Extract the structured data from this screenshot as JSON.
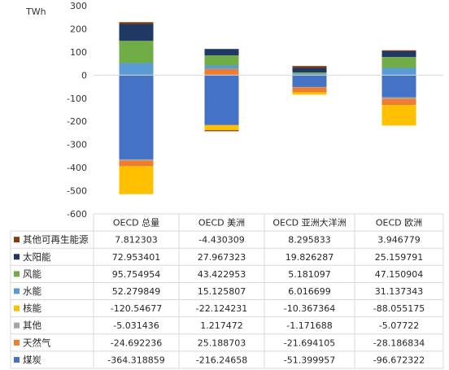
{
  "chart_data": {
    "type": "bar",
    "stacked": true,
    "title": "",
    "ylabel": "TWh",
    "ylim": [
      -600,
      300
    ],
    "yticks": [
      300,
      200,
      100,
      0,
      -100,
      -200,
      -300,
      -400,
      -500,
      -600
    ],
    "grid": false,
    "legend": "left-table",
    "categories": [
      "OECD 总量",
      "OECD 美洲",
      "OECD 亚洲大洋洲",
      "OECD 欧洲"
    ],
    "series": [
      {
        "name": "其他可再生能源",
        "color": "#843c0c",
        "values": [
          7.812303,
          -4.430309,
          8.295833,
          3.946779
        ],
        "display": [
          "7.812303",
          "-4.430309",
          "8.295833",
          "3.946779"
        ]
      },
      {
        "name": "太阳能",
        "color": "#203864",
        "values": [
          72.953401,
          27.967323,
          19.826287,
          25.159791
        ],
        "display": [
          "72.953401",
          "27.967323",
          "19.826287",
          "25.159791"
        ]
      },
      {
        "name": "风能",
        "color": "#70ad47",
        "values": [
          95.754954,
          43.422953,
          5.181097,
          47.150904
        ],
        "display": [
          "95.754954",
          "43.422953",
          "5.181097",
          "47.150904"
        ]
      },
      {
        "name": "水能",
        "color": "#5b9bd5",
        "values": [
          52.279849,
          15.125807,
          6.016699,
          31.137343
        ],
        "display": [
          "52.279849",
          "15.125807",
          "6.016699",
          "31.137343"
        ]
      },
      {
        "name": "核能",
        "color": "#ffc000",
        "values": [
          -120.54677,
          -22.124231,
          -10.367364,
          -88.055175
        ],
        "display": [
          "-120.54677",
          "-22.124231",
          "-10.367364",
          "-88.055175"
        ]
      },
      {
        "name": "其他",
        "color": "#a5a5a5",
        "values": [
          -5.031436,
          1.217472,
          -1.171688,
          -5.07722
        ],
        "display": [
          "-5.031436",
          "1.217472",
          "-1.171688",
          "-5.07722"
        ]
      },
      {
        "name": "天然气",
        "color": "#ed7d31",
        "values": [
          -24.692236,
          25.188703,
          -21.694105,
          -28.186834
        ],
        "display": [
          "-24.692236",
          "25.188703",
          "-21.694105",
          "-28.186834"
        ]
      },
      {
        "name": "煤炭",
        "color": "#4472c4",
        "values": [
          -364.318859,
          -216.24658,
          -51.399957,
          -96.672322
        ],
        "display": [
          "-364.318859",
          "-216.24658",
          "-51.399957",
          "-96.672322"
        ]
      }
    ],
    "stack_order": [
      "煤炭",
      "其他",
      "天然气",
      "核能",
      "水能",
      "风能",
      "太阳能",
      "其他可再生能源"
    ]
  }
}
